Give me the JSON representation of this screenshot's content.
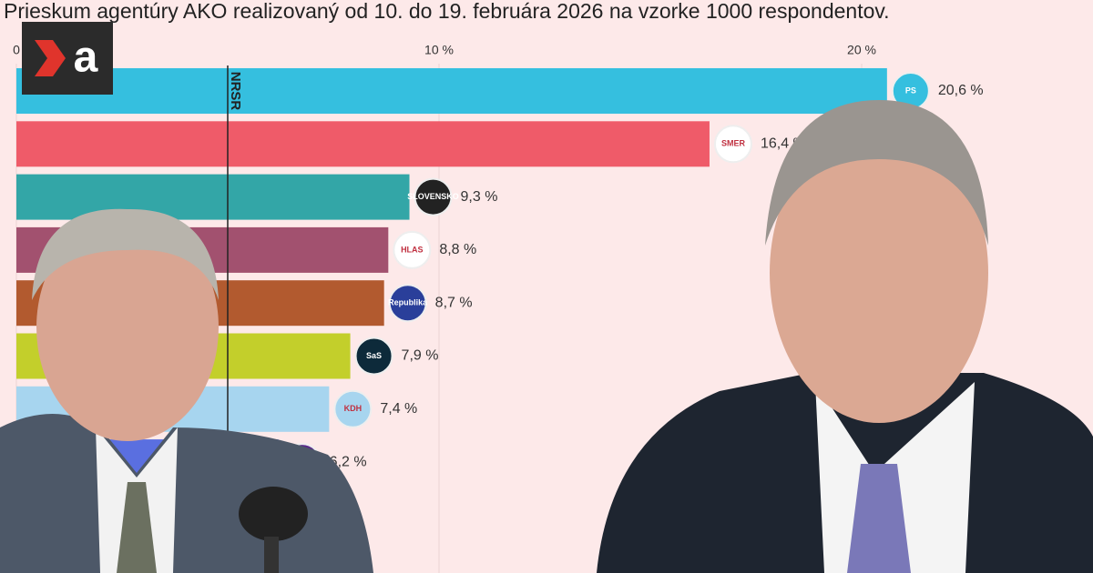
{
  "chart_data": {
    "type": "bar",
    "orientation": "horizontal",
    "title": "Prieskum agentúry AKO realizovaný od 10. do 19. februára 2026 na vzorke 1000 respondentov.",
    "brand": "a",
    "categories": [
      "PS",
      "SMER",
      "SLOVENSKO",
      "HLAS",
      "Republika",
      "SaS",
      "KDH",
      null
    ],
    "values": [
      20.6,
      16.4,
      9.3,
      8.8,
      8.7,
      7.9,
      7.4,
      6.2
    ],
    "value_labels": [
      "20,6 %",
      "16,4 %",
      "9,3 %",
      "8,8 %",
      "8,7 %",
      "7,9 %",
      "7,4 %",
      "6,2 %"
    ],
    "colors": [
      "#35bfdf",
      "#ef5b69",
      "#33a6a7",
      "#a2516f",
      "#b25a2f",
      "#c3cf2b",
      "#a7d5ef",
      "#5a6fe0"
    ],
    "logo_colors": [
      "#35bfdf",
      "#ffffff",
      "#222222",
      "#ffffff",
      "#2a3f9a",
      "#0d2a3a",
      "#a7d5ef",
      "#5a2a8a"
    ],
    "xlim": [
      0,
      25
    ],
    "xticks": [
      0,
      {
        "value": 10,
        "label": "10 %"
      },
      {
        "value": 20,
        "label": "20 %"
      }
    ],
    "grid": true,
    "threshold": {
      "value": 5,
      "label": "NRSR"
    }
  }
}
